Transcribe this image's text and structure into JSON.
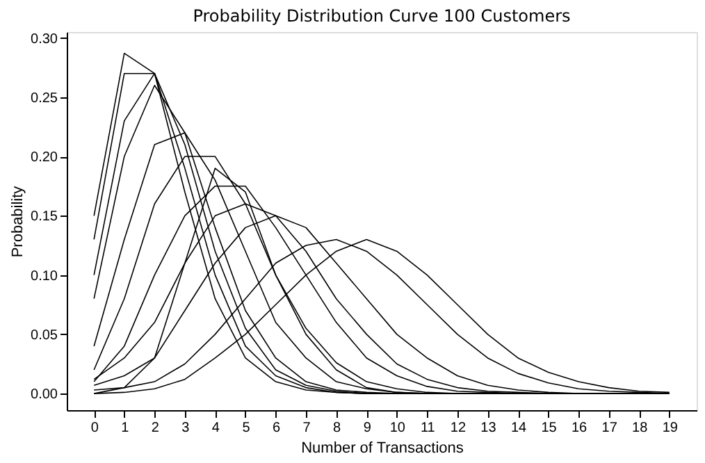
{
  "chart_data": {
    "type": "line",
    "title": "Probability Distribution Curve 100 Customers",
    "xlabel": "Number of Transactions",
    "ylabel": "Probability",
    "x": [
      0,
      1,
      2,
      3,
      4,
      5,
      6,
      7,
      8,
      9,
      10,
      11,
      12,
      13,
      14,
      15,
      16,
      17,
      18,
      19
    ],
    "xlim": [
      -0.9,
      19.9
    ],
    "xticks": [
      0,
      1,
      2,
      3,
      4,
      5,
      6,
      7,
      8,
      9,
      10,
      11,
      12,
      13,
      14,
      15,
      16,
      17,
      18,
      19
    ],
    "ylim": [
      -0.014,
      0.305
    ],
    "yticks": [
      {
        "value": 0,
        "label": "0.00"
      },
      0.05,
      {
        "value": 0.1,
        "label": "0.10"
      },
      0.15,
      {
        "value": 0.2,
        "label": "0.20"
      },
      0.25,
      {
        "value": 0.3,
        "label": "0.30"
      }
    ],
    "grid": false,
    "legend": false,
    "marker": "none",
    "line_style": "solid",
    "series": [
      {
        "color": "#000000",
        "values": [
          0.15,
          0.287,
          0.27,
          0.17,
          0.08,
          0.03,
          0.01,
          0.003,
          0.001,
          0,
          0,
          0,
          0,
          0,
          0,
          0,
          0,
          0,
          0,
          0
        ]
      },
      {
        "color": "#000000",
        "values": [
          0.13,
          0.27,
          0.27,
          0.19,
          0.1,
          0.04,
          0.015,
          0.005,
          0.001,
          0,
          0,
          0,
          0,
          0,
          0,
          0,
          0,
          0,
          0,
          0
        ]
      },
      {
        "color": "#000000",
        "values": [
          0.1,
          0.23,
          0.27,
          0.21,
          0.12,
          0.055,
          0.02,
          0.007,
          0.002,
          0,
          0,
          0,
          0,
          0,
          0,
          0,
          0,
          0,
          0,
          0
        ]
      },
      {
        "color": "#000000",
        "values": [
          0.08,
          0.2,
          0.26,
          0.22,
          0.14,
          0.07,
          0.03,
          0.01,
          0.003,
          0.001,
          0,
          0,
          0,
          0,
          0,
          0,
          0,
          0,
          0,
          0
        ]
      },
      {
        "color": "#000000",
        "values": [
          0.04,
          0.13,
          0.21,
          0.22,
          0.18,
          0.12,
          0.06,
          0.03,
          0.01,
          0.004,
          0.001,
          0,
          0,
          0,
          0,
          0,
          0,
          0,
          0,
          0
        ]
      },
      {
        "color": "#000000",
        "values": [
          0.02,
          0.08,
          0.16,
          0.2,
          0.2,
          0.16,
          0.1,
          0.055,
          0.026,
          0.01,
          0.004,
          0.001,
          0,
          0,
          0,
          0,
          0,
          0,
          0,
          0
        ]
      },
      {
        "color": "#000000",
        "values": [
          0,
          0.005,
          0.03,
          0.11,
          0.19,
          0.17,
          0.1,
          0.05,
          0.02,
          0.005,
          0.001,
          0,
          0,
          0,
          0,
          0,
          0,
          0,
          0,
          0
        ]
      },
      {
        "color": "#000000",
        "values": [
          0.01,
          0.04,
          0.1,
          0.15,
          0.175,
          0.175,
          0.14,
          0.1,
          0.06,
          0.03,
          0.015,
          0.006,
          0.002,
          0.001,
          0,
          0,
          0,
          0,
          0,
          0
        ]
      },
      {
        "color": "#000000",
        "values": [
          0.012,
          0.03,
          0.06,
          0.11,
          0.15,
          0.16,
          0.15,
          0.12,
          0.08,
          0.05,
          0.025,
          0.012,
          0.005,
          0.002,
          0.001,
          0,
          0,
          0,
          0,
          0
        ]
      },
      {
        "color": "#000000",
        "values": [
          0.007,
          0.015,
          0.03,
          0.07,
          0.11,
          0.14,
          0.15,
          0.14,
          0.11,
          0.08,
          0.05,
          0.03,
          0.015,
          0.007,
          0.003,
          0.001,
          0,
          0,
          0,
          0
        ]
      },
      {
        "color": "#000000",
        "values": [
          0.003,
          0.005,
          0.01,
          0.025,
          0.05,
          0.08,
          0.11,
          0.125,
          0.13,
          0.12,
          0.1,
          0.075,
          0.05,
          0.03,
          0.017,
          0.009,
          0.004,
          0.002,
          0.001,
          0
        ]
      },
      {
        "color": "#000000",
        "values": [
          0,
          0.001,
          0.004,
          0.012,
          0.03,
          0.05,
          0.075,
          0.1,
          0.12,
          0.13,
          0.12,
          0.1,
          0.075,
          0.05,
          0.03,
          0.018,
          0.01,
          0.005,
          0.002,
          0.001
        ]
      }
    ]
  }
}
